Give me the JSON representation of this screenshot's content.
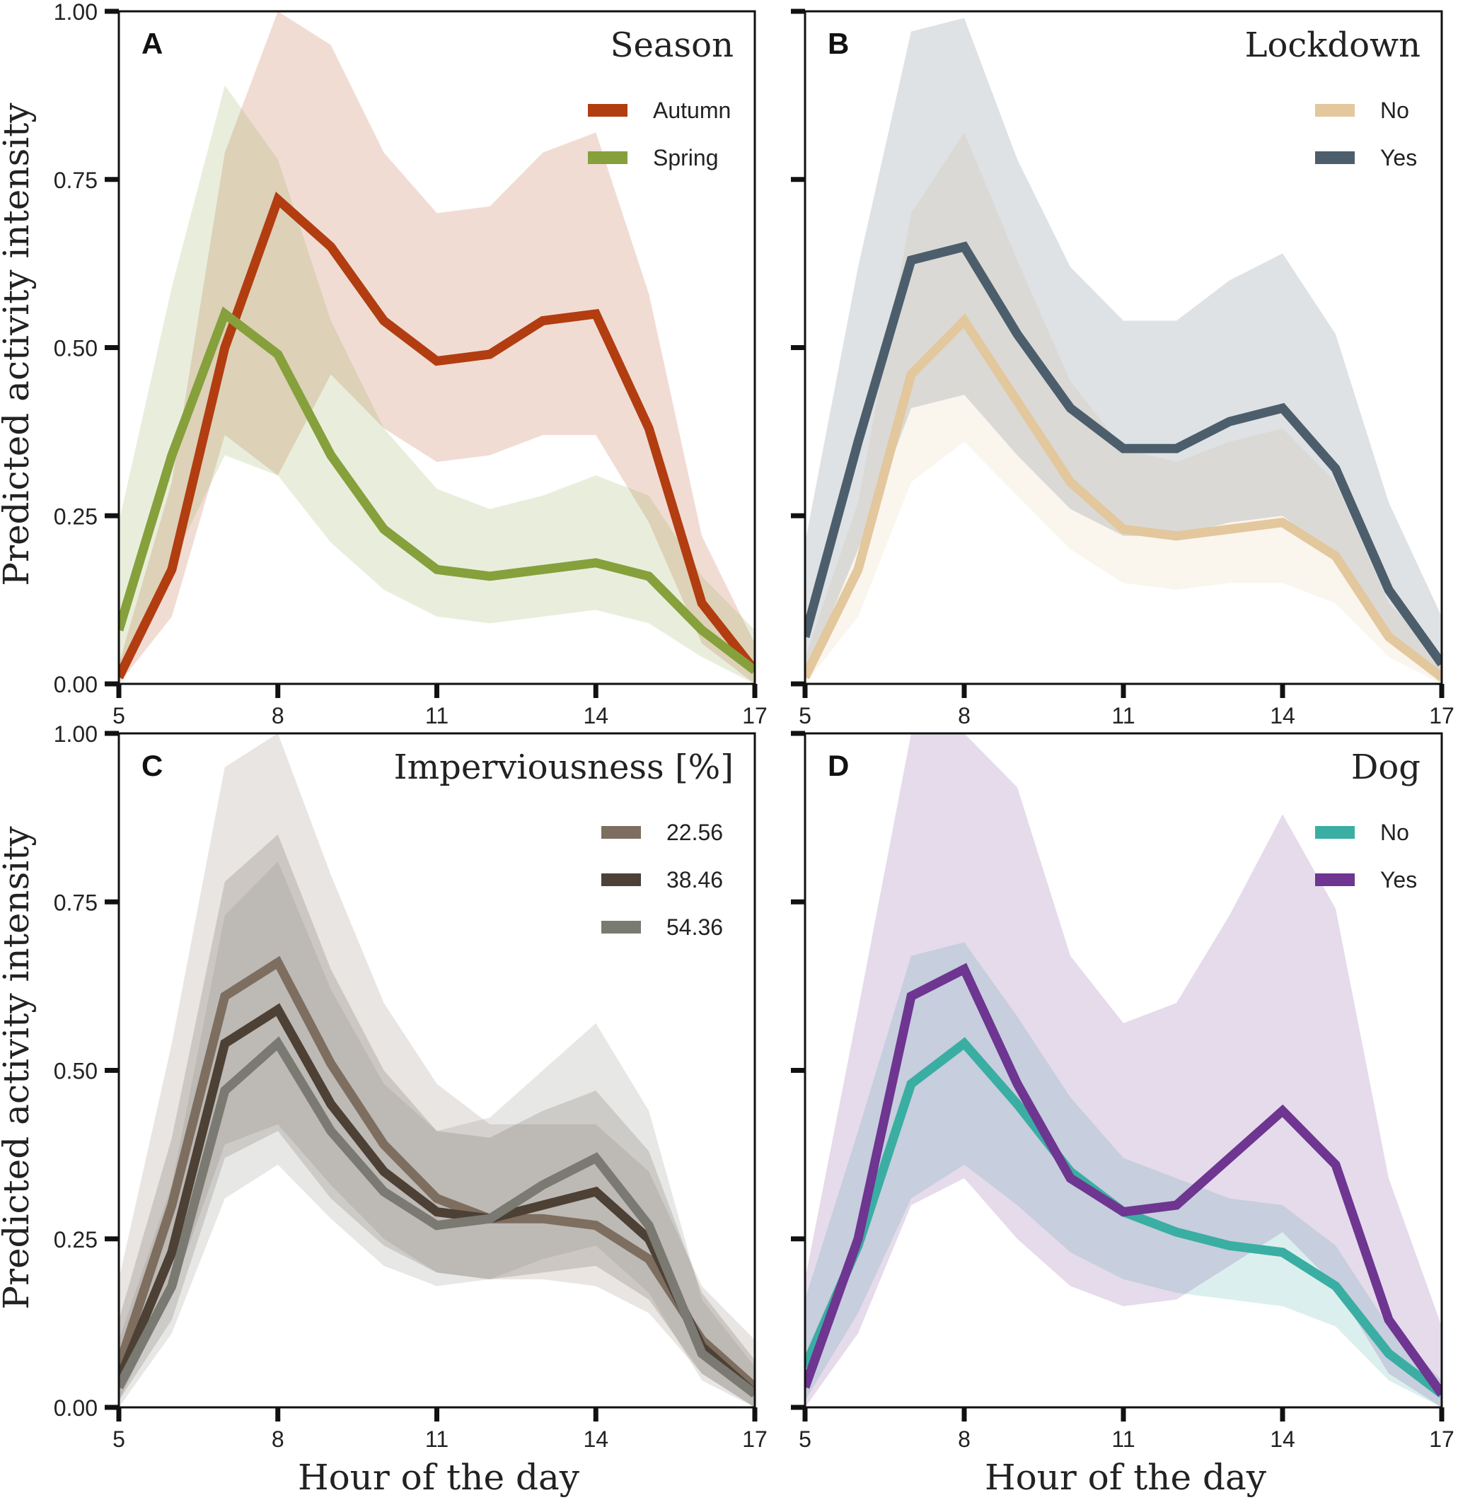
{
  "figure": {
    "x_axis_label": "Hour of the day",
    "y_axis_label": "Predicted activity intensity"
  },
  "chart_data": [
    {
      "type": "line",
      "panel_letter": "A",
      "legend_title": "Season",
      "legend_position": "top-right",
      "xlabel": "",
      "ylabel": "Predicted activity intensity",
      "x": [
        5,
        6,
        7,
        8,
        9,
        10,
        11,
        12,
        13,
        14,
        15,
        16,
        17
      ],
      "xlim": [
        5,
        17
      ],
      "ylim": [
        0,
        1
      ],
      "x_ticks": [
        5,
        8,
        11,
        14,
        17
      ],
      "y_ticks": [
        "0.00",
        "0.25",
        "0.50",
        "0.75",
        "1.00"
      ],
      "series": [
        {
          "name": "Autumn",
          "color": "#b23d10",
          "values": [
            0.01,
            0.17,
            0.5,
            0.72,
            0.65,
            0.54,
            0.48,
            0.49,
            0.54,
            0.55,
            0.38,
            0.12,
            0.02
          ],
          "lower": [
            0.0,
            0.1,
            0.37,
            0.31,
            0.46,
            0.38,
            0.33,
            0.34,
            0.37,
            0.37,
            0.24,
            0.06,
            0.0
          ],
          "upper": [
            0.03,
            0.3,
            0.79,
            1.0,
            0.95,
            0.79,
            0.7,
            0.71,
            0.79,
            0.82,
            0.58,
            0.22,
            0.06
          ]
        },
        {
          "name": "Spring",
          "color": "#86a03c",
          "values": [
            0.08,
            0.34,
            0.55,
            0.49,
            0.34,
            0.23,
            0.17,
            0.16,
            0.17,
            0.18,
            0.16,
            0.08,
            0.02
          ],
          "lower": [
            0.02,
            0.18,
            0.34,
            0.31,
            0.21,
            0.14,
            0.1,
            0.09,
            0.1,
            0.11,
            0.09,
            0.04,
            0.0
          ],
          "upper": [
            0.24,
            0.59,
            0.89,
            0.78,
            0.54,
            0.38,
            0.29,
            0.26,
            0.28,
            0.31,
            0.28,
            0.16,
            0.08
          ]
        }
      ]
    },
    {
      "type": "line",
      "panel_letter": "B",
      "legend_title": "Lockdown",
      "legend_position": "top-right",
      "xlabel": "",
      "ylabel": "",
      "x": [
        5,
        6,
        7,
        8,
        9,
        10,
        11,
        12,
        13,
        14,
        15,
        16,
        17
      ],
      "xlim": [
        5,
        17
      ],
      "ylim": [
        0,
        1
      ],
      "x_ticks": [
        5,
        8,
        11,
        14,
        17
      ],
      "y_ticks": [
        "0.00",
        "0.25",
        "0.50",
        "0.75",
        "1.00"
      ],
      "series": [
        {
          "name": "No",
          "color": "#e3c79d",
          "values": [
            0.01,
            0.17,
            0.46,
            0.54,
            0.42,
            0.3,
            0.23,
            0.22,
            0.23,
            0.24,
            0.19,
            0.07,
            0.01
          ],
          "lower": [
            0.0,
            0.1,
            0.3,
            0.36,
            0.28,
            0.2,
            0.15,
            0.14,
            0.15,
            0.15,
            0.12,
            0.04,
            0.0
          ],
          "upper": [
            0.04,
            0.27,
            0.7,
            0.82,
            0.63,
            0.45,
            0.35,
            0.33,
            0.36,
            0.38,
            0.3,
            0.12,
            0.04
          ]
        },
        {
          "name": "Yes",
          "color": "#4c5e6c",
          "values": [
            0.07,
            0.36,
            0.63,
            0.65,
            0.52,
            0.41,
            0.35,
            0.35,
            0.39,
            0.41,
            0.32,
            0.14,
            0.03
          ],
          "lower": [
            0.01,
            0.2,
            0.41,
            0.43,
            0.34,
            0.26,
            0.22,
            0.22,
            0.24,
            0.25,
            0.19,
            0.07,
            0.0
          ],
          "upper": [
            0.21,
            0.62,
            0.97,
            0.99,
            0.78,
            0.62,
            0.54,
            0.54,
            0.6,
            0.64,
            0.52,
            0.27,
            0.1
          ]
        }
      ]
    },
    {
      "type": "line",
      "panel_letter": "C",
      "legend_title": "Imperviousness [%]",
      "legend_position": "top-right",
      "xlabel": "Hour of the day",
      "ylabel": "Predicted activity intensity",
      "x": [
        5,
        6,
        7,
        8,
        9,
        10,
        11,
        12,
        13,
        14,
        15,
        16,
        17
      ],
      "xlim": [
        5,
        17
      ],
      "ylim": [
        0,
        1
      ],
      "x_ticks": [
        5,
        8,
        11,
        14,
        17
      ],
      "y_ticks": [
        "0.00",
        "0.25",
        "0.50",
        "0.75",
        "1.00"
      ],
      "series": [
        {
          "name": "22.56",
          "color": "#7d6e60",
          "values": [
            0.06,
            0.3,
            0.61,
            0.66,
            0.51,
            0.39,
            0.31,
            0.28,
            0.28,
            0.27,
            0.22,
            0.1,
            0.03
          ],
          "lower": [
            0.01,
            0.17,
            0.39,
            0.42,
            0.33,
            0.25,
            0.2,
            0.19,
            0.19,
            0.18,
            0.14,
            0.05,
            0.0
          ],
          "upper": [
            0.19,
            0.54,
            0.95,
            1.0,
            0.79,
            0.6,
            0.48,
            0.42,
            0.42,
            0.42,
            0.35,
            0.18,
            0.1
          ]
        },
        {
          "name": "38.46",
          "color": "#4d4035",
          "values": [
            0.04,
            0.23,
            0.54,
            0.59,
            0.45,
            0.35,
            0.29,
            0.28,
            0.3,
            0.32,
            0.25,
            0.09,
            0.02
          ],
          "lower": [
            0.01,
            0.13,
            0.37,
            0.41,
            0.31,
            0.24,
            0.2,
            0.19,
            0.2,
            0.21,
            0.16,
            0.05,
            0.0
          ],
          "upper": [
            0.13,
            0.4,
            0.78,
            0.85,
            0.65,
            0.5,
            0.41,
            0.4,
            0.44,
            0.47,
            0.38,
            0.17,
            0.07
          ]
        },
        {
          "name": "54.36",
          "color": "#7a7972",
          "values": [
            0.03,
            0.18,
            0.47,
            0.54,
            0.41,
            0.32,
            0.27,
            0.28,
            0.33,
            0.37,
            0.27,
            0.08,
            0.02
          ],
          "lower": [
            0.0,
            0.11,
            0.31,
            0.36,
            0.28,
            0.21,
            0.18,
            0.19,
            0.22,
            0.24,
            0.17,
            0.04,
            0.0
          ],
          "upper": [
            0.1,
            0.33,
            0.73,
            0.81,
            0.62,
            0.48,
            0.41,
            0.43,
            0.5,
            0.57,
            0.44,
            0.16,
            0.06
          ]
        }
      ]
    },
    {
      "type": "line",
      "panel_letter": "D",
      "legend_title": "Dog",
      "legend_position": "top-right",
      "xlabel": "Hour of the day",
      "ylabel": "",
      "x": [
        5,
        6,
        7,
        8,
        9,
        10,
        11,
        12,
        13,
        14,
        15,
        16,
        17
      ],
      "xlim": [
        5,
        17
      ],
      "ylim": [
        0,
        1
      ],
      "x_ticks": [
        5,
        8,
        11,
        14,
        17
      ],
      "y_ticks": [
        "0.00",
        "0.25",
        "0.50",
        "0.75",
        "1.00"
      ],
      "series": [
        {
          "name": "No",
          "color": "#3aaea3",
          "values": [
            0.06,
            0.24,
            0.48,
            0.54,
            0.45,
            0.35,
            0.29,
            0.26,
            0.24,
            0.23,
            0.18,
            0.08,
            0.02
          ],
          "lower": [
            0.01,
            0.14,
            0.31,
            0.36,
            0.3,
            0.23,
            0.19,
            0.17,
            0.16,
            0.15,
            0.12,
            0.04,
            0.0
          ],
          "upper": [
            0.16,
            0.41,
            0.67,
            0.69,
            0.58,
            0.46,
            0.37,
            0.34,
            0.31,
            0.3,
            0.24,
            0.12,
            0.04
          ]
        },
        {
          "name": "Yes",
          "color": "#6e3591",
          "values": [
            0.03,
            0.25,
            0.61,
            0.65,
            0.48,
            0.34,
            0.29,
            0.3,
            0.37,
            0.44,
            0.36,
            0.13,
            0.02
          ],
          "lower": [
            0.0,
            0.11,
            0.3,
            0.34,
            0.25,
            0.18,
            0.15,
            0.16,
            0.21,
            0.26,
            0.18,
            0.05,
            0.0
          ],
          "upper": [
            0.19,
            0.59,
            1.0,
            1.0,
            0.92,
            0.67,
            0.57,
            0.6,
            0.73,
            0.88,
            0.74,
            0.34,
            0.12
          ]
        }
      ]
    }
  ]
}
